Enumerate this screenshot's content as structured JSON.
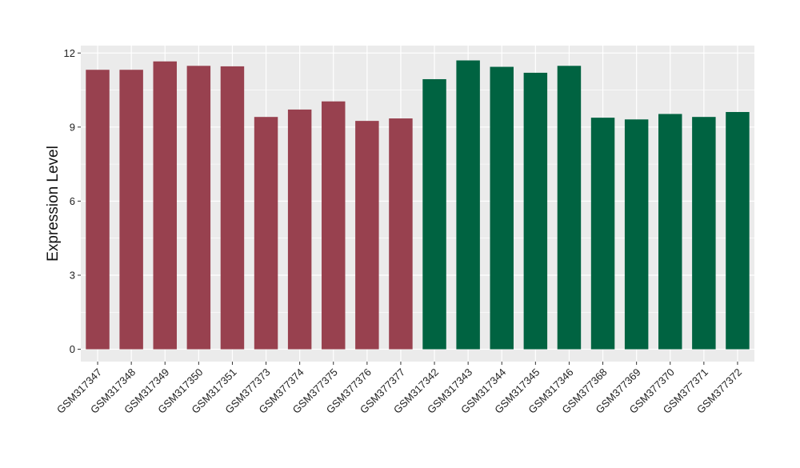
{
  "chart_data": {
    "type": "bar",
    "ylabel": "Expression Level",
    "xlabel": "",
    "ylim": [
      -0.5,
      12.3
    ],
    "yticks": [
      0,
      3,
      6,
      9,
      12
    ],
    "grid": true,
    "categories": [
      "GSM317347",
      "GSM317348",
      "GSM317349",
      "GSM317350",
      "GSM317351",
      "GSM377373",
      "GSM377374",
      "GSM377375",
      "GSM377376",
      "GSM377377",
      "GSM317342",
      "GSM317343",
      "GSM317344",
      "GSM317345",
      "GSM317346",
      "GSM377368",
      "GSM377369",
      "GSM377370",
      "GSM377371",
      "GSM377372"
    ],
    "values": [
      11.32,
      11.32,
      11.66,
      11.48,
      11.46,
      9.41,
      9.71,
      10.04,
      9.25,
      9.35,
      10.94,
      11.7,
      11.44,
      11.2,
      11.48,
      9.38,
      9.31,
      9.53,
      9.41,
      9.61
    ],
    "bar_colors": [
      "#98414f",
      "#98414f",
      "#98414f",
      "#98414f",
      "#98414f",
      "#98414f",
      "#98414f",
      "#98414f",
      "#98414f",
      "#98414f",
      "#006341",
      "#006341",
      "#006341",
      "#006341",
      "#006341",
      "#006341",
      "#006341",
      "#006341",
      "#006341",
      "#006341"
    ],
    "panel_background": "#ebebeb",
    "grid_color": "#ffffff"
  }
}
